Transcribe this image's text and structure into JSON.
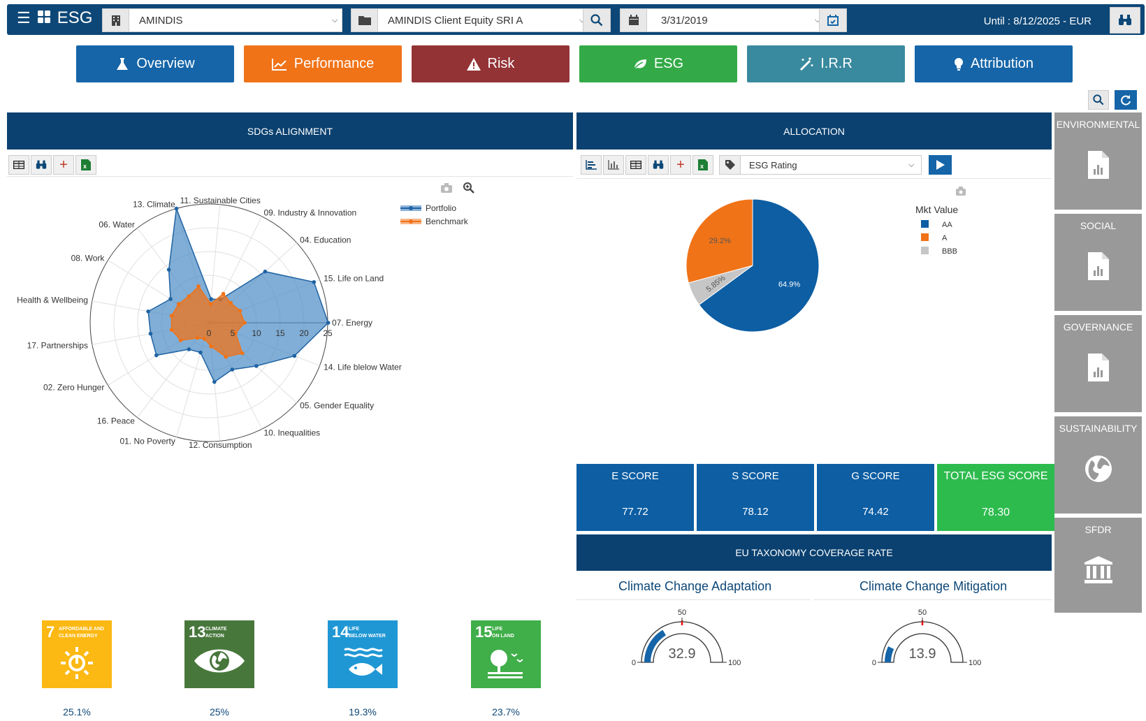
{
  "header": {
    "brand": "ESG",
    "company": "AMINDIS",
    "portfolio": "AMINDIS Client Equity SRI A",
    "date": "3/31/2019",
    "until": "Until : 8/12/2025 - EUR"
  },
  "nav": [
    {
      "label": "Overview",
      "color": "#1565a8"
    },
    {
      "label": "Performance",
      "color": "#f07318"
    },
    {
      "label": "Risk",
      "color": "#933336"
    },
    {
      "label": "ESG",
      "color": "#33aa47"
    },
    {
      "label": "I.R.R",
      "color": "#3a8a9f"
    },
    {
      "label": "Attribution",
      "color": "#1565a8"
    }
  ],
  "sdg_panel": {
    "title": "SDGs ALIGNMENT",
    "legend": [
      "Portfolio",
      "Benchmark"
    ]
  },
  "allocation_panel": {
    "title": "ALLOCATION",
    "select": "ESG Rating",
    "legend_title": "Mkt Value",
    "legend": [
      "AA",
      "A",
      "BBB"
    ]
  },
  "chart_data": [
    {
      "type": "radar",
      "categories": [
        "07. Energy",
        "15. Life on Land",
        "04. Education",
        "09. Industry & Innovation",
        "11. Sustainable Cities",
        "13. Climate",
        "06. Water",
        "08. Work",
        "Health & Wellbeing",
        "17. Partnerships",
        "02. Zero Hunger",
        "16. Peace",
        "01. No Poverty",
        "12. Consumption",
        "10. Inequalities",
        "05. Gender Equality",
        "14. Life blelow Water"
      ],
      "radial_ticks": [
        "0",
        "5",
        "10",
        "15",
        "20",
        "25"
      ],
      "rmax": 25,
      "series": [
        {
          "name": "Portfolio",
          "values": [
            25.1,
            23.7,
            16.0,
            5.5,
            5.0,
            25.0,
            14.0,
            9.5,
            13.0,
            12.5,
            13.0,
            7.0,
            6.5,
            12.5,
            11.0,
            13.5,
            19.3
          ]
        },
        {
          "name": "Benchmark",
          "values": [
            7.5,
            7.0,
            6.2,
            6.8,
            4.0,
            8.0,
            7.0,
            7.5,
            8.0,
            8.0,
            7.0,
            4.0,
            3.5,
            5.0,
            8.0,
            9.5,
            6.0
          ]
        }
      ]
    },
    {
      "type": "pie",
      "title": "Mkt Value",
      "categories": [
        "AA",
        "BBB",
        "A"
      ],
      "values": [
        64.9,
        5.85,
        29.2
      ],
      "labels": [
        "64.9%",
        "5.85%",
        "29.2%"
      ],
      "colors": [
        "#0d5ea3",
        "#c6c6c6",
        "#f07318"
      ]
    }
  ],
  "scores": [
    {
      "label": "E SCORE",
      "value": "77.72"
    },
    {
      "label": "S SCORE",
      "value": "78.12"
    },
    {
      "label": "G SCORE",
      "value": "74.42"
    },
    {
      "label": "TOTAL ESG SCORE",
      "value": "78.30"
    }
  ],
  "taxonomy": {
    "title": "EU TAXONOMY COVERAGE RATE",
    "gauges": [
      {
        "title": "Climate Change Adaptation",
        "value": 32.9,
        "display": "32.9",
        "min": "0",
        "mid": "50",
        "max": "100"
      },
      {
        "title": "Climate Change Mitigation",
        "value": 13.9,
        "display": "13.9",
        "min": "0",
        "mid": "50",
        "max": "100"
      }
    ]
  },
  "side_tiles": [
    "ENVIRONMENTAL",
    "SOCIAL",
    "GOVERNANCE",
    "SUSTAINABILITY",
    "SFDR"
  ],
  "sdg_tiles": [
    {
      "number": "7",
      "caption": [
        "AFFORDABLE AND",
        "CLEAN ENERGY"
      ],
      "pct": "25.1%",
      "color": "#fcb813"
    },
    {
      "number": "13",
      "caption": [
        "CLIMATE",
        "ACTION"
      ],
      "pct": "25%",
      "color": "#48773c"
    },
    {
      "number": "14",
      "caption": [
        "LIFE",
        "BELOW WATER"
      ],
      "pct": "19.3%",
      "color": "#1f97d4"
    },
    {
      "number": "15",
      "caption": [
        "LIFE",
        "ON LAND"
      ],
      "pct": "23.7%",
      "color": "#40ae49"
    }
  ]
}
